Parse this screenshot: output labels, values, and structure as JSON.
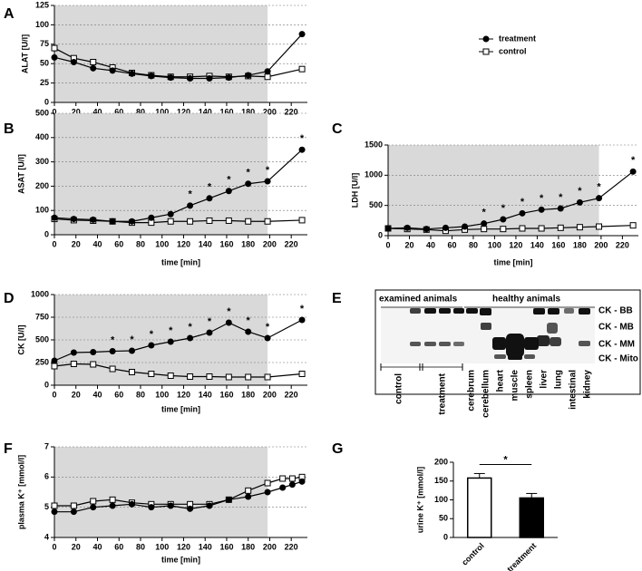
{
  "panel_labels": [
    "A",
    "B",
    "C",
    "D",
    "E",
    "F",
    "G"
  ],
  "chart_data": [
    {
      "type": "line",
      "xlabel": "time [min]",
      "ylabel": "ALAT [U/l]",
      "x": [
        0,
        18,
        36,
        54,
        72,
        90,
        108,
        126,
        144,
        162,
        180,
        198,
        230
      ],
      "xlim": [
        0,
        235
      ],
      "xticks": [
        0,
        20,
        40,
        60,
        80,
        100,
        120,
        140,
        160,
        180,
        200,
        220
      ],
      "ylim": [
        0,
        125
      ],
      "yticks": [
        0,
        25,
        50,
        75,
        100,
        125
      ],
      "grid": true,
      "shade": [
        0,
        198
      ],
      "legend": "right",
      "series": [
        {
          "name": "treatment",
          "color": "#000000",
          "marker": "circle",
          "values": [
            58,
            52,
            44,
            41,
            37,
            34,
            32,
            31,
            31,
            32,
            35,
            40,
            88
          ]
        },
        {
          "name": "control",
          "color": "#ffffff",
          "marker": "square",
          "values": [
            70,
            57,
            52,
            45,
            38,
            35,
            33,
            33,
            34,
            33,
            34,
            33,
            43
          ]
        }
      ]
    },
    {
      "type": "line",
      "xlabel": "time [min]",
      "ylabel": "ASAT [U/l]",
      "x": [
        0,
        18,
        36,
        54,
        72,
        90,
        108,
        126,
        144,
        162,
        180,
        198,
        230
      ],
      "xlim": [
        0,
        235
      ],
      "xticks": [
        0,
        20,
        40,
        60,
        80,
        100,
        120,
        140,
        160,
        180,
        200,
        220
      ],
      "ylim": [
        0,
        500
      ],
      "yticks": [
        0,
        100,
        200,
        300,
        400,
        500
      ],
      "grid": true,
      "shade": [
        0,
        198
      ],
      "series": [
        {
          "color": "#000000",
          "marker": "circle",
          "values": [
            70,
            65,
            62,
            55,
            55,
            70,
            85,
            120,
            150,
            180,
            210,
            220,
            350
          ]
        },
        {
          "color": "#ffffff",
          "marker": "square",
          "values": [
            65,
            60,
            58,
            55,
            50,
            50,
            55,
            55,
            58,
            58,
            55,
            55,
            60
          ]
        }
      ],
      "annotations": [
        {
          "x": 126,
          "text": "*"
        },
        {
          "x": 144,
          "text": "*"
        },
        {
          "x": 162,
          "text": "*"
        },
        {
          "x": 180,
          "text": "*"
        },
        {
          "x": 198,
          "text": "*"
        },
        {
          "x": 230,
          "text": "*"
        }
      ]
    },
    {
      "type": "line",
      "xlabel": "time [min]",
      "ylabel": "LDH [U/l]",
      "x": [
        0,
        18,
        36,
        54,
        72,
        90,
        108,
        126,
        144,
        162,
        180,
        198,
        230
      ],
      "xlim": [
        0,
        235
      ],
      "xticks": [
        0,
        20,
        40,
        60,
        80,
        100,
        120,
        140,
        160,
        180,
        200,
        220
      ],
      "ylim": [
        0,
        1500
      ],
      "yticks": [
        0,
        500,
        1000,
        1500
      ],
      "grid": true,
      "shade": [
        0,
        198
      ],
      "series": [
        {
          "color": "#000000",
          "marker": "circle",
          "values": [
            120,
            130,
            110,
            130,
            150,
            200,
            270,
            370,
            430,
            450,
            550,
            620,
            1060
          ]
        },
        {
          "color": "#ffffff",
          "marker": "square",
          "values": [
            120,
            110,
            100,
            80,
            100,
            110,
            110,
            120,
            120,
            130,
            140,
            150,
            170
          ]
        }
      ],
      "annotations": [
        {
          "x": 90,
          "text": "*"
        },
        {
          "x": 108,
          "text": "*"
        },
        {
          "x": 126,
          "text": "*"
        },
        {
          "x": 144,
          "text": "*"
        },
        {
          "x": 162,
          "text": "*"
        },
        {
          "x": 180,
          "text": "*"
        },
        {
          "x": 198,
          "text": "*"
        },
        {
          "x": 230,
          "text": "*"
        }
      ]
    },
    {
      "type": "line",
      "xlabel": "time [min]",
      "ylabel": "CK [U/l]",
      "x": [
        0,
        18,
        36,
        54,
        72,
        90,
        108,
        126,
        144,
        162,
        180,
        198,
        230
      ],
      "xlim": [
        0,
        235
      ],
      "xticks": [
        0,
        20,
        40,
        60,
        80,
        100,
        120,
        140,
        160,
        180,
        200,
        220
      ],
      "ylim": [
        0,
        1000
      ],
      "yticks": [
        0,
        250,
        500,
        750,
        1000
      ],
      "grid": true,
      "shade": [
        0,
        198
      ],
      "series": [
        {
          "color": "#000000",
          "marker": "circle",
          "values": [
            270,
            360,
            365,
            375,
            380,
            440,
            480,
            520,
            580,
            690,
            590,
            520,
            720
          ]
        },
        {
          "color": "#ffffff",
          "marker": "square",
          "values": [
            210,
            235,
            230,
            180,
            145,
            125,
            105,
            95,
            95,
            90,
            90,
            90,
            125
          ]
        }
      ],
      "annotations": [
        {
          "x": 54,
          "text": "*"
        },
        {
          "x": 72,
          "text": "*"
        },
        {
          "x": 90,
          "text": "*"
        },
        {
          "x": 108,
          "text": "*"
        },
        {
          "x": 126,
          "text": "*"
        },
        {
          "x": 144,
          "text": "*"
        },
        {
          "x": 162,
          "text": "*"
        },
        {
          "x": 180,
          "text": "*"
        },
        {
          "x": 198,
          "text": "*"
        },
        {
          "x": 230,
          "text": "*"
        }
      ]
    },
    {
      "type": "line",
      "xlabel": "time [min]",
      "ylabel": "plasma K⁺ [mmol/l]",
      "x": [
        0,
        18,
        36,
        54,
        72,
        90,
        108,
        126,
        144,
        162,
        180,
        198,
        212,
        221,
        230
      ],
      "xlim": [
        0,
        235
      ],
      "xticks": [
        0,
        20,
        40,
        60,
        80,
        100,
        120,
        140,
        160,
        180,
        200,
        220
      ],
      "ylim": [
        4,
        7
      ],
      "yticks": [
        4,
        5,
        6,
        7
      ],
      "grid": true,
      "shade": [
        0,
        198
      ],
      "series": [
        {
          "color": "#000000",
          "marker": "circle",
          "values": [
            4.85,
            4.85,
            5.0,
            5.05,
            5.1,
            5.0,
            5.05,
            4.95,
            5.05,
            5.25,
            5.35,
            5.5,
            5.65,
            5.75,
            5.85
          ]
        },
        {
          "color": "#ffffff",
          "marker": "square",
          "values": [
            5.05,
            5.05,
            5.2,
            5.25,
            5.15,
            5.1,
            5.1,
            5.1,
            5.1,
            5.25,
            5.55,
            5.8,
            5.95,
            5.95,
            6.0
          ]
        }
      ]
    },
    {
      "type": "bar",
      "ylabel": "urine K⁺ [mmol/l]",
      "categories": [
        "control",
        "treatment"
      ],
      "values": [
        158,
        105
      ],
      "errors": [
        12,
        12
      ],
      "colors": [
        "#ffffff",
        "#000000"
      ],
      "ylim": [
        0,
        200
      ],
      "yticks": [
        0,
        50,
        100,
        150,
        200
      ],
      "annotations": [
        {
          "text": "*"
        }
      ]
    }
  ],
  "gel": {
    "groups": [
      "examined animals",
      "healthy animals"
    ],
    "bands": [
      "CK - BB",
      "CK - MB",
      "CK - MM",
      "CK - Mito"
    ],
    "lanes": [
      "control",
      "treatment",
      "cerebrum",
      "cerebellum",
      "heart",
      "muscle",
      "spleen",
      "liver",
      "lung",
      "intestinal",
      "kidney"
    ]
  }
}
